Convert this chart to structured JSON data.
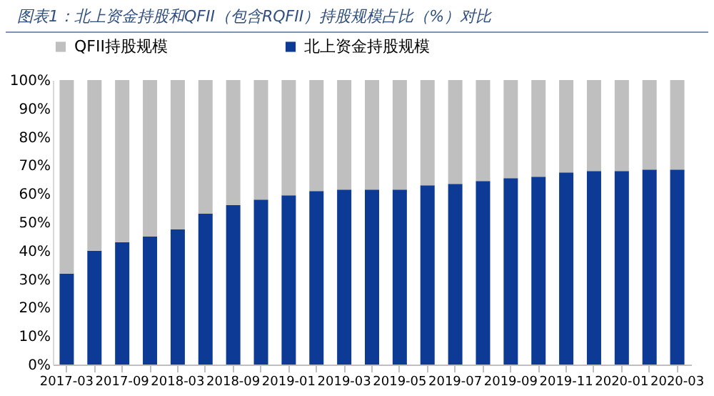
{
  "chart_data": {
    "type": "bar",
    "title": "图表1：北上资金持股和QFII（包含RQFII）持股规模占比（%）对比",
    "categories": [
      "2017-03",
      null,
      "2017-09",
      null,
      "2018-03",
      null,
      "2018-09",
      null,
      "2019-01",
      null,
      "2019-03",
      null,
      "2019-05",
      null,
      "2019-07",
      null,
      "2019-09",
      null,
      "2019-11",
      null,
      "2020-01",
      null,
      "2020-03"
    ],
    "stacked": true,
    "series": [
      {
        "name": "北上资金持股规模",
        "color": "#0d3a94",
        "values": [
          32,
          40,
          43,
          45,
          47.5,
          53,
          56,
          58,
          59.5,
          61,
          61.5,
          61.5,
          61.5,
          63,
          63.5,
          64.5,
          65.5,
          66,
          67.5,
          68,
          68,
          68.5,
          68.5
        ]
      },
      {
        "name": "QFII持股规模",
        "color": "#bfbfbf",
        "values": [
          68,
          60,
          57,
          55,
          52.5,
          47,
          44,
          42,
          40.5,
          39,
          38.5,
          38.5,
          38.5,
          37,
          36.5,
          35.5,
          34.5,
          34,
          32.5,
          32,
          32,
          31.5,
          31.5
        ]
      }
    ],
    "ylim": [
      0,
      100
    ],
    "yticks": [
      {
        "value": 0,
        "label": "0%"
      },
      {
        "value": 10,
        "label": "10%"
      },
      {
        "value": 20,
        "label": "20%"
      },
      {
        "value": 30,
        "label": "30%"
      },
      {
        "value": 40,
        "label": "40%"
      },
      {
        "value": 50,
        "label": "50%"
      },
      {
        "value": 60,
        "label": "60%"
      },
      {
        "value": 70,
        "label": "70%"
      },
      {
        "value": 80,
        "label": "80%"
      },
      {
        "value": 90,
        "label": "90%"
      },
      {
        "value": 100,
        "label": "100%"
      }
    ],
    "grid": false,
    "legend": "top"
  }
}
